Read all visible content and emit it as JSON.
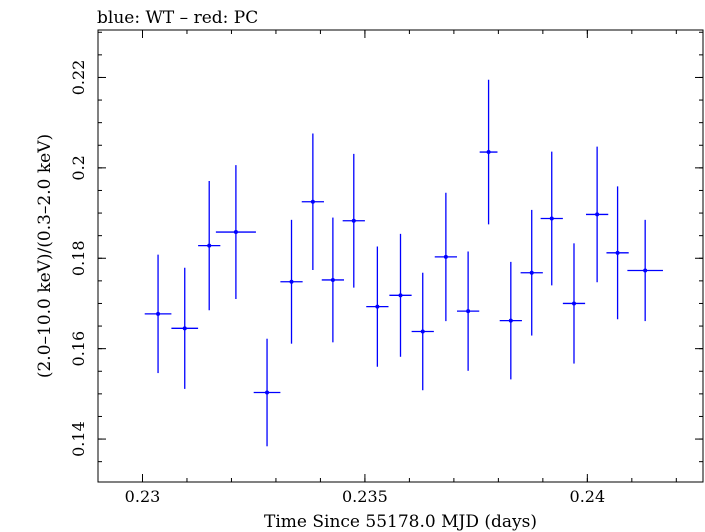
{
  "chart_data": {
    "type": "scatter",
    "title": "blue: WT – red: PC",
    "xlabel": "Time Since 55178.0 MJD (days)",
    "ylabel": "(2.0–10.0 keV)/(0.3–2.0 keV)",
    "xlim": [
      0.229,
      0.2426
    ],
    "ylim": [
      0.1305,
      0.2305
    ],
    "x_ticks": [
      0.23,
      0.235,
      0.24
    ],
    "x_tick_labels": [
      "0.23",
      "0.235",
      "0.24"
    ],
    "y_ticks": [
      0.14,
      0.16,
      0.18,
      0.2,
      0.22
    ],
    "y_tick_labels": [
      "0.14",
      "0.16",
      "0.18",
      "0.2",
      "0.22"
    ],
    "grid": false,
    "series": [
      {
        "color": "#0000ff",
        "points": [
          {
            "x": 0.23035,
            "y": 0.1677,
            "xerr": 0.0003,
            "yerr": 0.0131
          },
          {
            "x": 0.23095,
            "y": 0.1645,
            "xerr": 0.0003,
            "yerr": 0.0134
          },
          {
            "x": 0.2315,
            "y": 0.1828,
            "xerr": 0.00025,
            "yerr": 0.0143
          },
          {
            "x": 0.2321,
            "y": 0.1858,
            "xerr": 0.00045,
            "yerr": 0.0148
          },
          {
            "x": 0.2328,
            "y": 0.1503,
            "xerr": 0.0003,
            "yerr": 0.0119
          },
          {
            "x": 0.23335,
            "y": 0.1748,
            "xerr": 0.00025,
            "yerr": 0.0137
          },
          {
            "x": 0.23383,
            "y": 0.1925,
            "xerr": 0.00025,
            "yerr": 0.0151
          },
          {
            "x": 0.23428,
            "y": 0.1752,
            "xerr": 0.00025,
            "yerr": 0.0138
          },
          {
            "x": 0.23475,
            "y": 0.1883,
            "xerr": 0.00025,
            "yerr": 0.0148
          },
          {
            "x": 0.23528,
            "y": 0.1693,
            "xerr": 0.00025,
            "yerr": 0.0133
          },
          {
            "x": 0.2358,
            "y": 0.1718,
            "xerr": 0.00025,
            "yerr": 0.0136
          },
          {
            "x": 0.2363,
            "y": 0.1638,
            "xerr": 0.00025,
            "yerr": 0.013
          },
          {
            "x": 0.23682,
            "y": 0.1803,
            "xerr": 0.00025,
            "yerr": 0.0142
          },
          {
            "x": 0.23732,
            "y": 0.1683,
            "xerr": 0.00025,
            "yerr": 0.0132
          },
          {
            "x": 0.23778,
            "y": 0.2035,
            "xerr": 0.0002,
            "yerr": 0.016
          },
          {
            "x": 0.23828,
            "y": 0.1662,
            "xerr": 0.00025,
            "yerr": 0.013
          },
          {
            "x": 0.23875,
            "y": 0.1768,
            "xerr": 0.00025,
            "yerr": 0.0139
          },
          {
            "x": 0.2392,
            "y": 0.1888,
            "xerr": 0.00025,
            "yerr": 0.0148
          },
          {
            "x": 0.2397,
            "y": 0.17,
            "xerr": 0.00025,
            "yerr": 0.0133
          },
          {
            "x": 0.24022,
            "y": 0.1897,
            "xerr": 0.00025,
            "yerr": 0.015
          },
          {
            "x": 0.24068,
            "y": 0.1812,
            "xerr": 0.00025,
            "yerr": 0.0147
          },
          {
            "x": 0.2413,
            "y": 0.1773,
            "xerr": 0.0004,
            "yerr": 0.0112
          }
        ]
      }
    ]
  }
}
